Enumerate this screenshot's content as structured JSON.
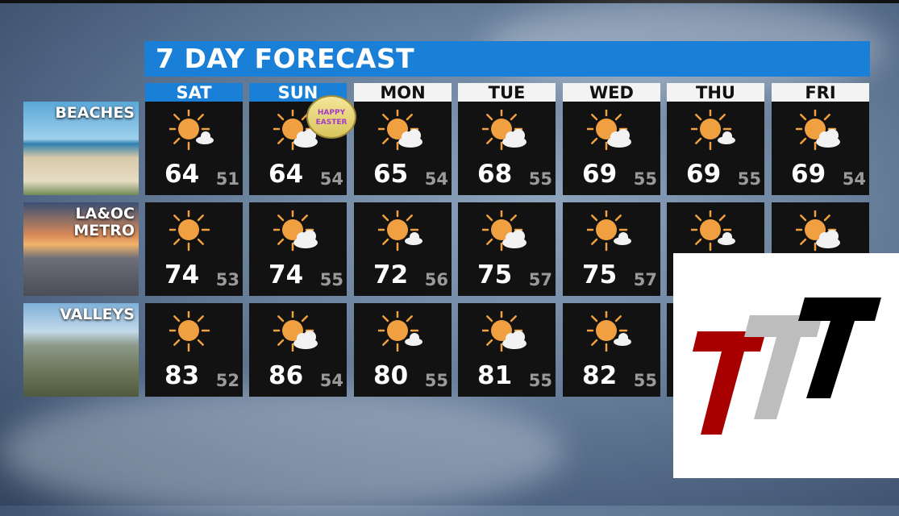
{
  "title": "7 DAY FORECAST",
  "days": [
    {
      "label": "SAT",
      "highlight": true
    },
    {
      "label": "SUN",
      "highlight": true
    },
    {
      "label": "MON",
      "highlight": false
    },
    {
      "label": "TUE",
      "highlight": false
    },
    {
      "label": "WED",
      "highlight": false
    },
    {
      "label": "THU",
      "highlight": false
    },
    {
      "label": "FRI",
      "highlight": false
    }
  ],
  "regions": [
    {
      "label": "BEACHES",
      "cells": [
        {
          "icon": "sun-cloud-small",
          "hi": "64",
          "lo": "51"
        },
        {
          "icon": "sun-cloud",
          "hi": "64",
          "lo": "54"
        },
        {
          "icon": "sun-cloud",
          "hi": "65",
          "lo": "54"
        },
        {
          "icon": "sun-cloud",
          "hi": "68",
          "lo": "55"
        },
        {
          "icon": "sun-cloud",
          "hi": "69",
          "lo": "55"
        },
        {
          "icon": "sun-cloud-small",
          "hi": "69",
          "lo": "55"
        },
        {
          "icon": "sun-cloud",
          "hi": "69",
          "lo": "54"
        }
      ]
    },
    {
      "label": "LA&OC\nMETRO",
      "cells": [
        {
          "icon": "sun",
          "hi": "74",
          "lo": "53"
        },
        {
          "icon": "sun-cloud",
          "hi": "74",
          "lo": "55"
        },
        {
          "icon": "sun-cloud-small",
          "hi": "72",
          "lo": "56"
        },
        {
          "icon": "sun-cloud",
          "hi": "75",
          "lo": "57"
        },
        {
          "icon": "sun-cloud-small",
          "hi": "75",
          "lo": "57"
        },
        {
          "icon": "sun-cloud-small"
        },
        {
          "icon": "sun-cloud"
        }
      ]
    },
    {
      "label": "VALLEYS",
      "cells": [
        {
          "icon": "sun",
          "hi": "83",
          "lo": "52"
        },
        {
          "icon": "sun-cloud",
          "hi": "86",
          "lo": "54"
        },
        {
          "icon": "sun-cloud-small",
          "hi": "80",
          "lo": "55"
        },
        {
          "icon": "sun-cloud",
          "hi": "81",
          "lo": "55"
        },
        {
          "icon": "sun-cloud-small",
          "hi": "82",
          "lo": "55"
        },
        {},
        {}
      ]
    }
  ],
  "easter_badge": "HAPPY EASTER",
  "colors": {
    "title_bar": "#1a7fd6",
    "cell_bg": "#121212",
    "sun": "#f0a040",
    "logo_red": "#a80000",
    "logo_gray": "#bdbdbd",
    "logo_black": "#000000"
  }
}
